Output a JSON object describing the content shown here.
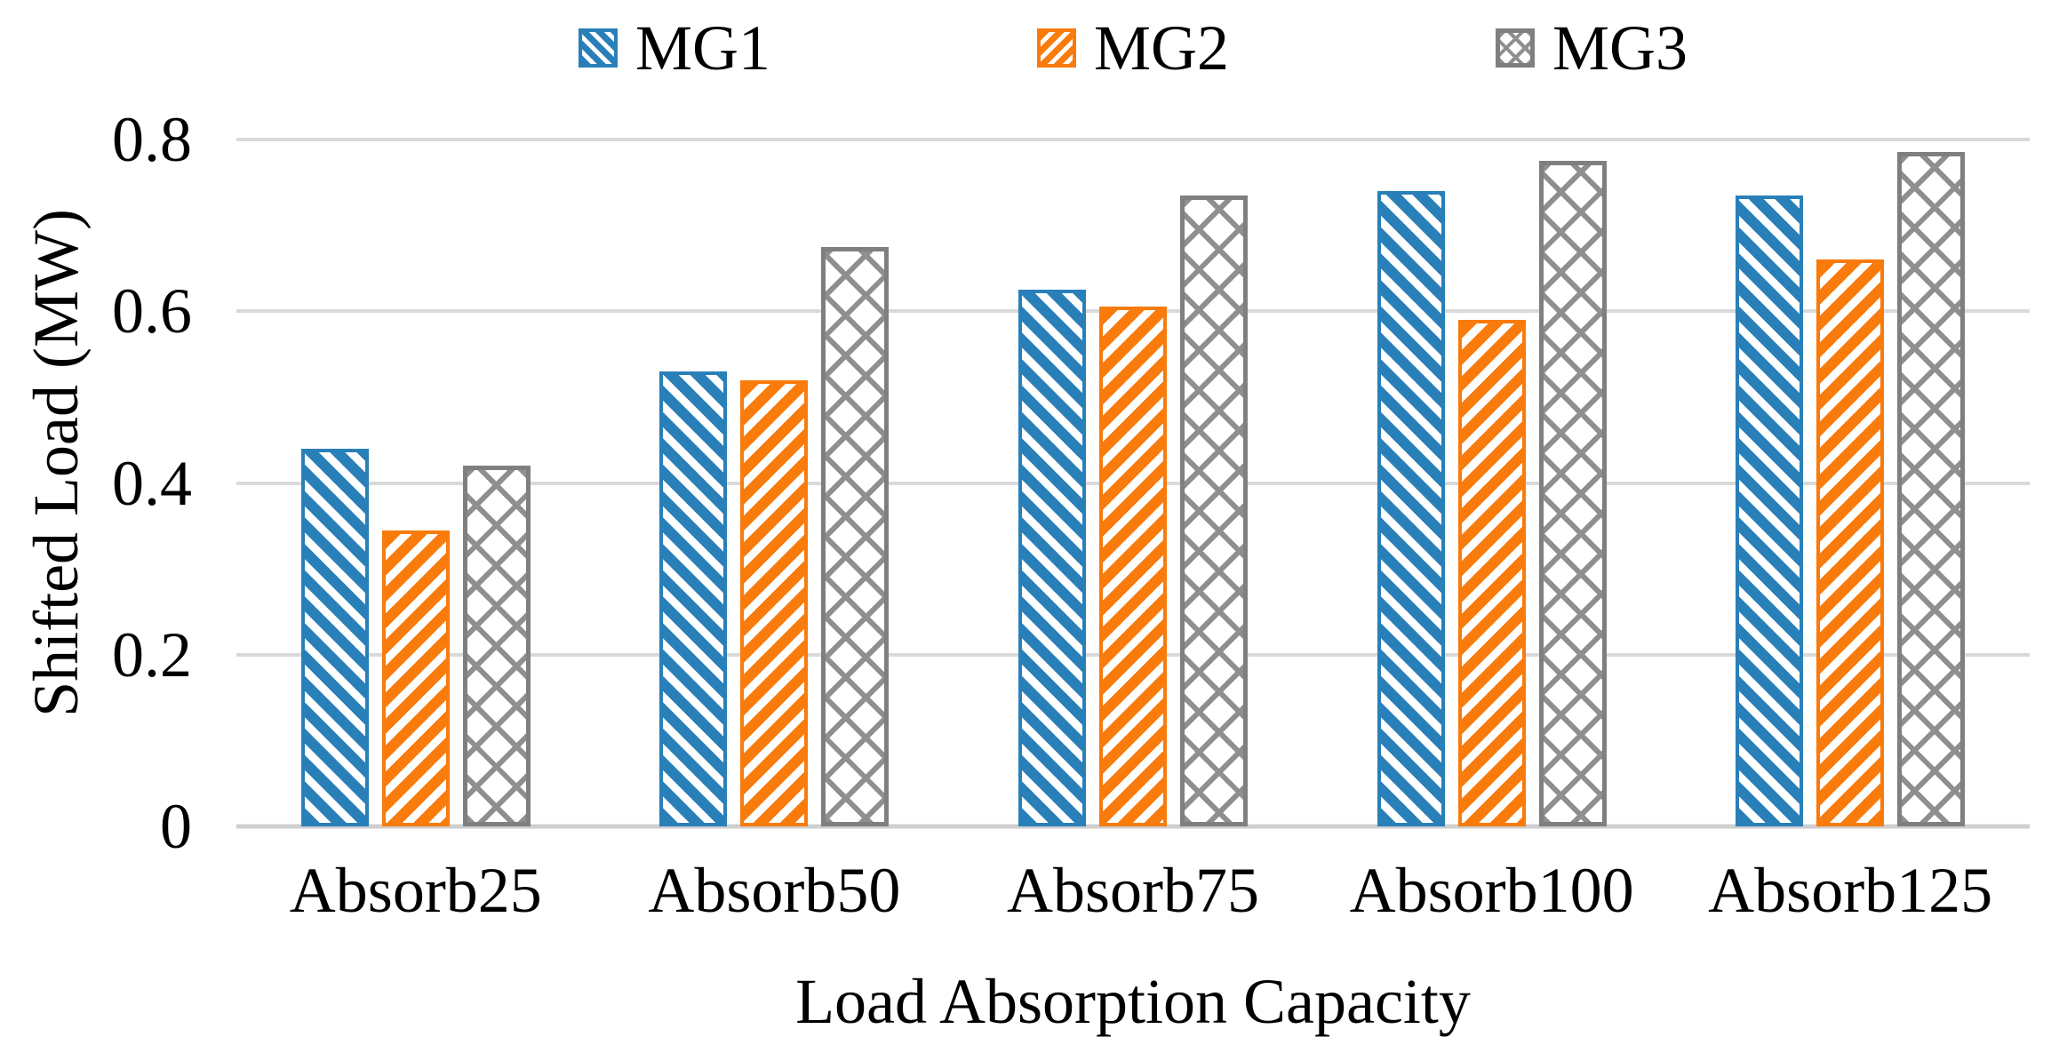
{
  "colors": {
    "mg1_blue": "#2980B9",
    "mg2_orange": "#F87B0C",
    "mg3_gray": "#7F7F7F",
    "mg3_gray_hatch": "#8F8F8F",
    "gridline": "#D9D9D9",
    "text": "#000000",
    "background": "#FFFFFF"
  },
  "chart_data": {
    "type": "bar",
    "title": "",
    "categories": [
      "Absorb25",
      "Absorb50",
      "Absorb75",
      "Absorb100",
      "Absorb125"
    ],
    "series": [
      {
        "name": "MG1",
        "values": [
          0.44,
          0.53,
          0.625,
          0.74,
          0.735
        ],
        "color": "#2980B9",
        "pattern": "diagonal-down-hatch"
      },
      {
        "name": "MG2",
        "values": [
          0.345,
          0.52,
          0.605,
          0.59,
          0.66
        ],
        "color": "#F87B0C",
        "pattern": "diagonal-up-hatch"
      },
      {
        "name": "MG3",
        "values": [
          0.42,
          0.675,
          0.735,
          0.775,
          0.785
        ],
        "color": "#7F7F7F",
        "pattern": "diagonal-cross-hatch"
      }
    ],
    "xlabel": "Load Absorption Capacity",
    "ylabel": "Shifted Load (MW)",
    "ylim": [
      0,
      0.8
    ],
    "yticks": [
      0,
      0.2,
      0.4,
      0.6,
      0.8
    ],
    "ytick_labels": [
      "0",
      "0.2",
      "0.4",
      "0.6",
      "0.8"
    ],
    "grid": "horizontal",
    "legend_position": "top"
  }
}
